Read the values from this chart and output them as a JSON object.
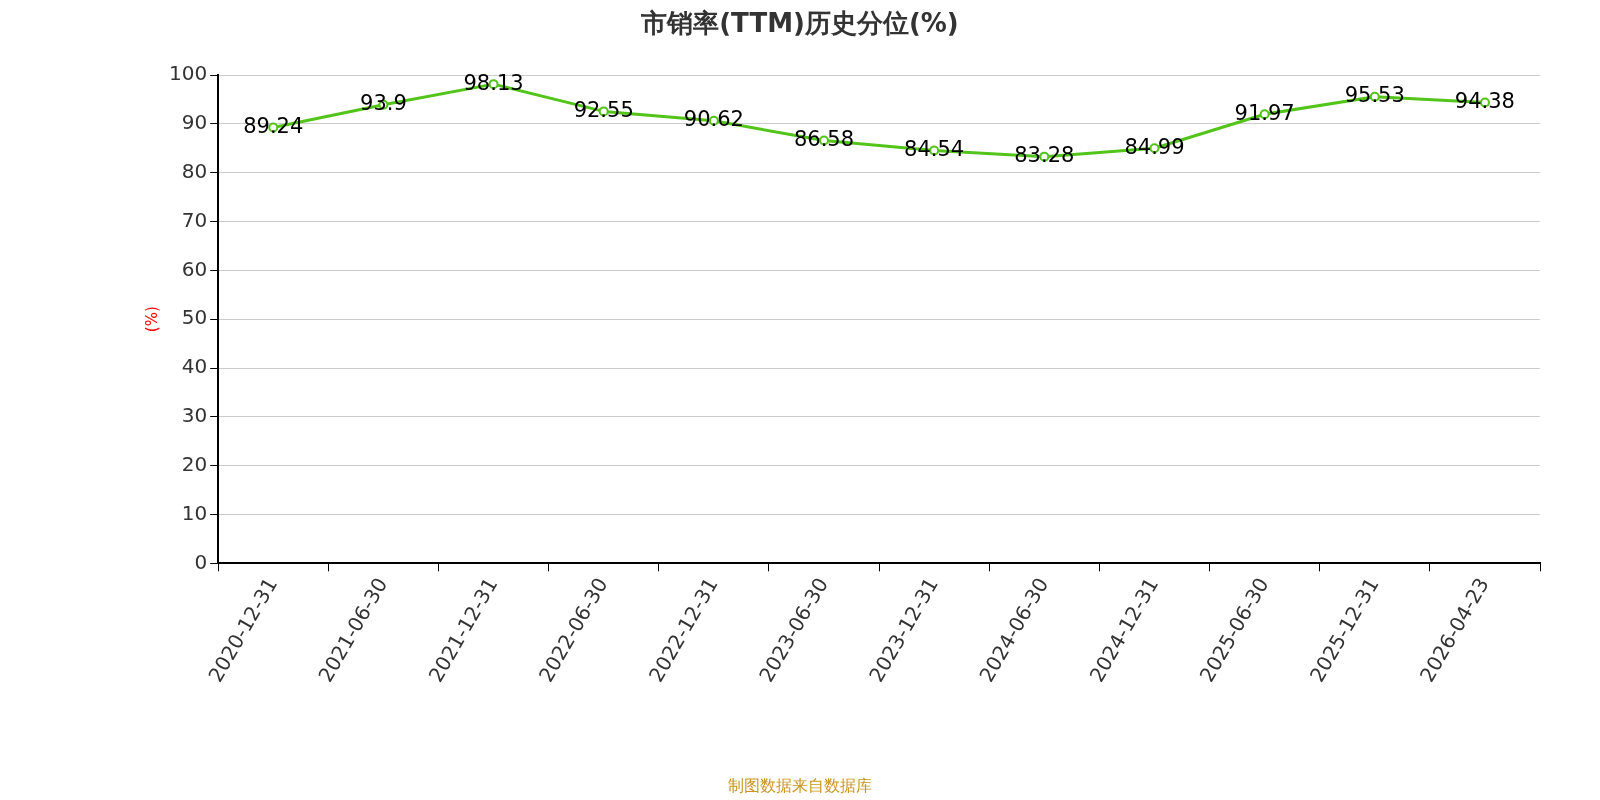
{
  "chart_data": {
    "type": "line",
    "title": "市销率(TTM)历史分位(%)",
    "ylabel": "(%)",
    "categories": [
      "2020-12-31",
      "2021-06-30",
      "2021-12-31",
      "2022-06-30",
      "2022-12-31",
      "2023-06-30",
      "2023-12-31",
      "2024-06-30",
      "2024-12-31",
      "2025-06-30",
      "2025-12-31",
      "2026-04-23"
    ],
    "series": [
      {
        "color": "#52c41a",
        "values": [
          89.24,
          93.9,
          98.13,
          92.55,
          90.62,
          86.58,
          84.54,
          83.28,
          84.99,
          91.97,
          95.53,
          94.38
        ]
      }
    ],
    "ylim": [
      0,
      100
    ],
    "yticks": [
      0,
      10,
      20,
      30,
      40,
      50,
      60,
      70,
      80,
      90,
      100
    ],
    "grid": "y",
    "legend": false,
    "marker": "circle",
    "line_style": "solid",
    "data_labels": true,
    "annotations": [
      "制图数据来自数据库"
    ]
  }
}
